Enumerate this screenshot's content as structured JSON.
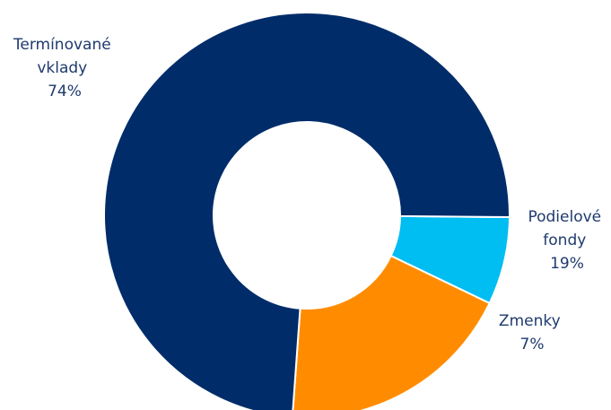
{
  "chart_data": {
    "type": "pie",
    "variant": "donut",
    "title": "",
    "legend": "none",
    "slices": [
      {
        "label_lines": [
          "Termínované",
          "vklady"
        ],
        "value_label": "74%",
        "value": 74,
        "color": "#002c6a"
      },
      {
        "label_lines": [
          "Podielové",
          "fondy"
        ],
        "value_label": "19%",
        "value": 19,
        "color": "#ff8c00"
      },
      {
        "label_lines": [
          "Zmenky"
        ],
        "value_label": "7%",
        "value": 7,
        "color": "#00bdf2"
      }
    ],
    "label_color": "#1f3a6e"
  }
}
